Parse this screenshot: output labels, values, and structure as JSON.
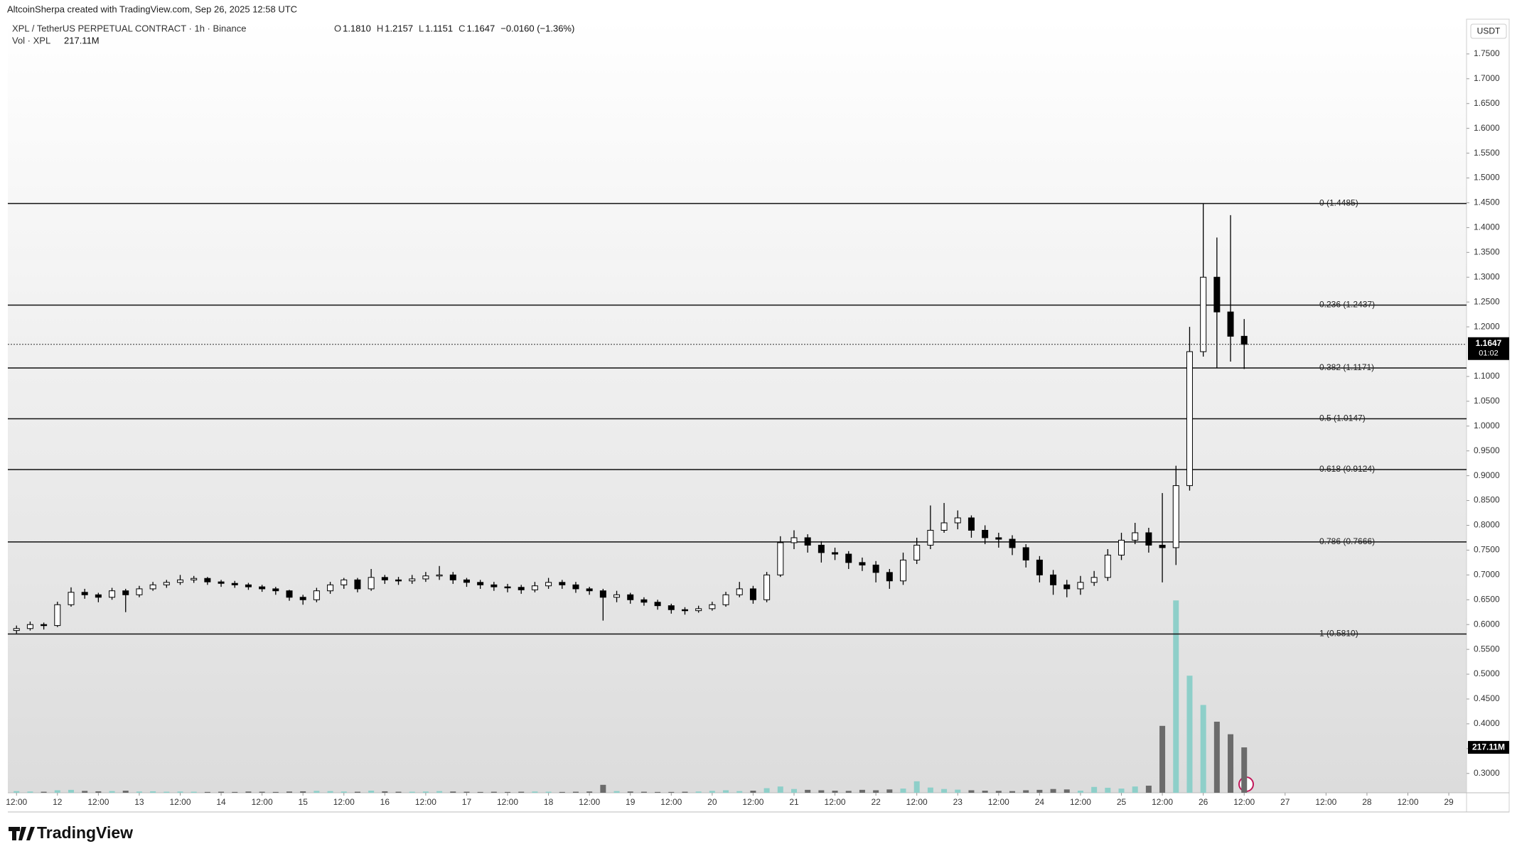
{
  "header": {
    "credit": "AltcoinSherpa created with TradingView.com, Sep 26, 2025 12:58 UTC"
  },
  "legend": {
    "symbol": "XPL / TetherUS PERPETUAL CONTRACT · 1h · Binance",
    "ohlc": [
      {
        "key": "O",
        "value": "1.1810"
      },
      {
        "key": "H",
        "value": "1.2157"
      },
      {
        "key": "L",
        "value": "1.1151"
      },
      {
        "key": "C",
        "value": "1.1647"
      }
    ],
    "change": "−0.0160 (−1.36%)",
    "volume_title": "Vol · XPL",
    "volume_value": "217.11M"
  },
  "chart_data": {
    "type": "candlestick",
    "currency": "USDT",
    "countdown": "01:02",
    "xlim": [
      9.45,
      437.2
    ],
    "ylim": [
      0.261,
      1.82
    ],
    "vlim": [
      0,
      3700
    ],
    "up_color": "#ffffff",
    "down_color": "#000000",
    "volume_up_color": "#8ecfc9",
    "volume_down_color": "#6b6b6b",
    "x": [
      12,
      16,
      20,
      24,
      28,
      32,
      36,
      40,
      44,
      48,
      52,
      56,
      60,
      64,
      68,
      72,
      76,
      80,
      84,
      88,
      92,
      96,
      100,
      104,
      108,
      112,
      116,
      120,
      124,
      128,
      132,
      136,
      140,
      144,
      148,
      152,
      156,
      160,
      164,
      168,
      172,
      176,
      180,
      184,
      188,
      192,
      196,
      200,
      204,
      208,
      212,
      216,
      220,
      224,
      228,
      232,
      236,
      240,
      244,
      248,
      252,
      256,
      260,
      264,
      268,
      272,
      276,
      280,
      284,
      288,
      292,
      296,
      300,
      304,
      308,
      312,
      316,
      320,
      324,
      328,
      332,
      336,
      340,
      344,
      348,
      352,
      356,
      360,
      364,
      368,
      372
    ],
    "series": {
      "open": [
        0.588,
        0.592,
        0.6,
        0.598,
        0.64,
        0.665,
        0.66,
        0.655,
        0.668,
        0.66,
        0.672,
        0.68,
        0.685,
        0.69,
        0.693,
        0.686,
        0.683,
        0.68,
        0.676,
        0.672,
        0.668,
        0.655,
        0.65,
        0.668,
        0.68,
        0.69,
        0.672,
        0.695,
        0.69,
        0.688,
        0.692,
        0.698,
        0.7,
        0.69,
        0.685,
        0.68,
        0.676,
        0.675,
        0.67,
        0.678,
        0.685,
        0.68,
        0.672,
        0.668,
        0.655,
        0.66,
        0.65,
        0.645,
        0.638,
        0.63,
        0.628,
        0.632,
        0.64,
        0.66,
        0.672,
        0.65,
        0.7,
        0.765,
        0.775,
        0.76,
        0.745,
        0.742,
        0.725,
        0.72,
        0.705,
        0.688,
        0.73,
        0.76,
        0.79,
        0.805,
        0.815,
        0.79,
        0.775,
        0.772,
        0.755,
        0.73,
        0.7,
        0.68,
        0.672,
        0.685,
        0.695,
        0.74,
        0.77,
        0.785,
        0.76,
        0.755,
        0.88,
        1.15,
        1.3,
        1.23,
        1.181
      ],
      "high": [
        0.598,
        0.606,
        0.604,
        0.646,
        0.675,
        0.672,
        0.664,
        0.674,
        0.672,
        0.678,
        0.686,
        0.69,
        0.7,
        0.698,
        0.696,
        0.69,
        0.688,
        0.684,
        0.68,
        0.676,
        0.67,
        0.66,
        0.674,
        0.686,
        0.694,
        0.694,
        0.712,
        0.7,
        0.696,
        0.7,
        0.706,
        0.718,
        0.706,
        0.694,
        0.69,
        0.686,
        0.682,
        0.68,
        0.686,
        0.694,
        0.69,
        0.686,
        0.676,
        0.672,
        0.668,
        0.664,
        0.655,
        0.65,
        0.642,
        0.635,
        0.638,
        0.646,
        0.666,
        0.686,
        0.678,
        0.706,
        0.778,
        0.79,
        0.782,
        0.768,
        0.755,
        0.748,
        0.735,
        0.728,
        0.712,
        0.745,
        0.775,
        0.84,
        0.845,
        0.83,
        0.82,
        0.8,
        0.785,
        0.78,
        0.762,
        0.738,
        0.71,
        0.69,
        0.698,
        0.708,
        0.752,
        0.785,
        0.805,
        0.795,
        0.865,
        0.92,
        1.2,
        1.4485,
        1.38,
        1.425,
        1.2157
      ],
      "low": [
        0.582,
        0.588,
        0.59,
        0.595,
        0.636,
        0.652,
        0.645,
        0.65,
        0.625,
        0.655,
        0.668,
        0.674,
        0.68,
        0.684,
        0.68,
        0.676,
        0.674,
        0.67,
        0.666,
        0.66,
        0.648,
        0.64,
        0.645,
        0.662,
        0.672,
        0.665,
        0.668,
        0.682,
        0.68,
        0.682,
        0.686,
        0.69,
        0.682,
        0.676,
        0.672,
        0.668,
        0.665,
        0.662,
        0.665,
        0.672,
        0.672,
        0.664,
        0.66,
        0.608,
        0.645,
        0.642,
        0.638,
        0.63,
        0.622,
        0.62,
        0.624,
        0.628,
        0.636,
        0.655,
        0.642,
        0.645,
        0.696,
        0.752,
        0.745,
        0.725,
        0.73,
        0.712,
        0.708,
        0.685,
        0.672,
        0.68,
        0.722,
        0.752,
        0.785,
        0.792,
        0.775,
        0.762,
        0.755,
        0.74,
        0.715,
        0.685,
        0.66,
        0.655,
        0.66,
        0.678,
        0.688,
        0.73,
        0.762,
        0.745,
        0.685,
        0.72,
        0.87,
        1.14,
        1.117,
        1.13,
        1.1151
      ],
      "close": [
        0.592,
        0.6,
        0.598,
        0.64,
        0.665,
        0.66,
        0.655,
        0.668,
        0.66,
        0.672,
        0.68,
        0.685,
        0.69,
        0.693,
        0.686,
        0.683,
        0.68,
        0.676,
        0.672,
        0.668,
        0.655,
        0.65,
        0.668,
        0.68,
        0.69,
        0.672,
        0.695,
        0.69,
        0.688,
        0.692,
        0.698,
        0.7,
        0.69,
        0.685,
        0.68,
        0.676,
        0.675,
        0.67,
        0.678,
        0.685,
        0.68,
        0.672,
        0.668,
        0.655,
        0.66,
        0.65,
        0.645,
        0.638,
        0.63,
        0.628,
        0.632,
        0.64,
        0.66,
        0.672,
        0.65,
        0.7,
        0.765,
        0.775,
        0.76,
        0.745,
        0.742,
        0.725,
        0.72,
        0.705,
        0.688,
        0.73,
        0.76,
        0.79,
        0.805,
        0.815,
        0.79,
        0.775,
        0.772,
        0.755,
        0.73,
        0.7,
        0.68,
        0.672,
        0.685,
        0.695,
        0.74,
        0.77,
        0.785,
        0.76,
        0.755,
        0.88,
        1.15,
        1.3,
        1.23,
        1.181,
        1.1647
      ],
      "volume": [
        8,
        6,
        5,
        12,
        14,
        9,
        7,
        8,
        10,
        6,
        7,
        5,
        6,
        5,
        4,
        5,
        4,
        6,
        5,
        4,
        6,
        7,
        9,
        8,
        6,
        5,
        10,
        7,
        5,
        5,
        6,
        8,
        6,
        5,
        4,
        5,
        4,
        5,
        6,
        5,
        4,
        5,
        6,
        38,
        8,
        6,
        5,
        4,
        4,
        5,
        6,
        9,
        12,
        8,
        10,
        22,
        30,
        18,
        14,
        12,
        10,
        9,
        14,
        12,
        16,
        20,
        55,
        25,
        18,
        15,
        12,
        10,
        9,
        8,
        12,
        14,
        18,
        16,
        10,
        28,
        24,
        20,
        30,
        34,
        320,
        920,
        560,
        420,
        340,
        280,
        217.11
      ]
    },
    "fib_levels": [
      {
        "price": 1.4485,
        "label": "0 (1.4485)"
      },
      {
        "price": 1.2437,
        "label": "0.236 (1.2437)"
      },
      {
        "price": 1.1171,
        "label": "0.382 (1.1171)"
      },
      {
        "price": 1.0147,
        "label": "0.5 (1.0147)"
      },
      {
        "price": 0.9124,
        "label": "0.618 (0.9124)"
      },
      {
        "price": 0.7666,
        "label": "0.786 (0.7666)"
      },
      {
        "price": 0.581,
        "label": "1 (0.5810)"
      }
    ],
    "yticks": [
      {
        "value": 1.75,
        "label": "1.7500"
      },
      {
        "value": 1.7,
        "label": "1.7000"
      },
      {
        "value": 1.65,
        "label": "1.6500"
      },
      {
        "value": 1.6,
        "label": "1.6000"
      },
      {
        "value": 1.55,
        "label": "1.5500"
      },
      {
        "value": 1.5,
        "label": "1.5000"
      },
      {
        "value": 1.45,
        "label": "1.4500"
      },
      {
        "value": 1.4,
        "label": "1.4000"
      },
      {
        "value": 1.35,
        "label": "1.3500"
      },
      {
        "value": 1.3,
        "label": "1.3000"
      },
      {
        "value": 1.25,
        "label": "1.2500"
      },
      {
        "value": 1.2,
        "label": "1.2000"
      },
      {
        "value": 1.1,
        "label": "1.1000"
      },
      {
        "value": 1.05,
        "label": "1.0500"
      },
      {
        "value": 1.0,
        "label": "1.0000"
      },
      {
        "value": 0.95,
        "label": "0.9500"
      },
      {
        "value": 0.9,
        "label": "0.9000"
      },
      {
        "value": 0.85,
        "label": "0.8500"
      },
      {
        "value": 0.8,
        "label": "0.8000"
      },
      {
        "value": 0.75,
        "label": "0.7500"
      },
      {
        "value": 0.7,
        "label": "0.7000"
      },
      {
        "value": 0.65,
        "label": "0.6500"
      },
      {
        "value": 0.6,
        "label": "0.6000"
      },
      {
        "value": 0.55,
        "label": "0.5500"
      },
      {
        "value": 0.5,
        "label": "0.5000"
      },
      {
        "value": 0.45,
        "label": "0.4500"
      },
      {
        "value": 0.4,
        "label": "0.4000"
      },
      {
        "value": 0.35,
        "label": "0.3500"
      },
      {
        "value": 0.3,
        "label": "0.3000"
      }
    ],
    "xticks": [
      {
        "value": 12,
        "label": "12:00"
      },
      {
        "value": 24,
        "label": "12"
      },
      {
        "value": 36,
        "label": "12:00"
      },
      {
        "value": 48,
        "label": "13"
      },
      {
        "value": 60,
        "label": "12:00"
      },
      {
        "value": 72,
        "label": "14"
      },
      {
        "value": 84,
        "label": "12:00"
      },
      {
        "value": 96,
        "label": "15"
      },
      {
        "value": 108,
        "label": "12:00"
      },
      {
        "value": 120,
        "label": "16"
      },
      {
        "value": 132,
        "label": "12:00"
      },
      {
        "value": 144,
        "label": "17"
      },
      {
        "value": 156,
        "label": "12:00"
      },
      {
        "value": 168,
        "label": "18"
      },
      {
        "value": 180,
        "label": "12:00"
      },
      {
        "value": 192,
        "label": "19"
      },
      {
        "value": 204,
        "label": "12:00"
      },
      {
        "value": 216,
        "label": "20"
      },
      {
        "value": 228,
        "label": "12:00"
      },
      {
        "value": 240,
        "label": "21"
      },
      {
        "value": 252,
        "label": "12:00"
      },
      {
        "value": 264,
        "label": "22"
      },
      {
        "value": 276,
        "label": "12:00"
      },
      {
        "value": 288,
        "label": "23"
      },
      {
        "value": 300,
        "label": "12:00"
      },
      {
        "value": 312,
        "label": "24"
      },
      {
        "value": 324,
        "label": "12:00"
      },
      {
        "value": 336,
        "label": "25"
      },
      {
        "value": 348,
        "label": "12:00"
      },
      {
        "value": 360,
        "label": "26"
      },
      {
        "value": 372,
        "label": "12:00"
      },
      {
        "value": 384,
        "label": "27"
      },
      {
        "value": 396,
        "label": "12:00"
      },
      {
        "value": 408,
        "label": "28"
      },
      {
        "value": 420,
        "label": "12:00"
      },
      {
        "value": 432,
        "label": "29"
      }
    ]
  },
  "footer": {
    "brand": "TradingView"
  }
}
